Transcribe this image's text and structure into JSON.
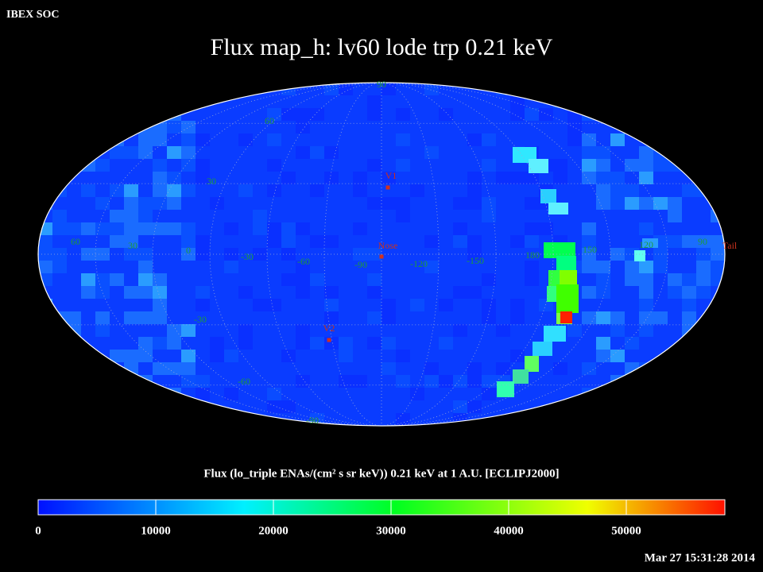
{
  "header": {
    "label": "IBEX SOC",
    "title": "Flux map_h: lv60 lode trp 0.21 keV",
    "timestamp": "Mar 27 15:31:28 2014"
  },
  "map": {
    "longitude_labels": [
      60,
      30,
      0,
      -30,
      -60,
      -90,
      -120,
      -150,
      180,
      150,
      120,
      90
    ],
    "latitude_labels": [
      90,
      60,
      30,
      -30,
      -60,
      -90
    ],
    "markers": [
      {
        "label": "V1"
      },
      {
        "label": "Nose"
      },
      {
        "label": "V2"
      },
      {
        "label": "Tail"
      }
    ]
  },
  "colorbar": {
    "title": "Flux (lo_triple ENAs/(cm² s sr keV)) 0.21 keV at 1 A.U. [ECLIPJ2000]",
    "ticks": [
      0,
      10000,
      20000,
      30000,
      40000,
      50000
    ]
  }
}
